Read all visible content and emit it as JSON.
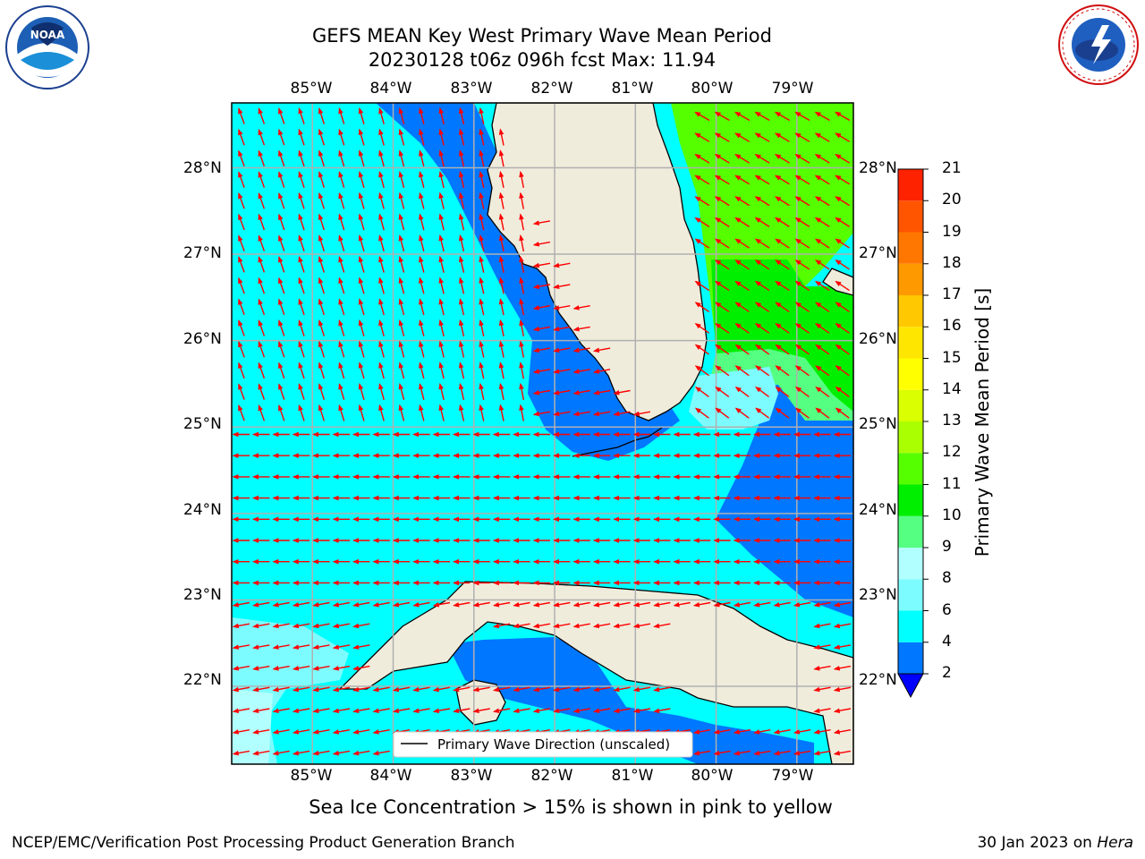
{
  "title": {
    "line1": "GEFS MEAN Key West Primary Wave Mean Period",
    "line2": "20230128 t06z 096h fcst   Max: 11.94"
  },
  "map": {
    "lon_labels": [
      "85°W",
      "84°W",
      "83°W",
      "82°W",
      "81°W",
      "80°W",
      "79°W"
    ],
    "lat_labels": [
      "28°N",
      "27°N",
      "26°N",
      "25°N",
      "24°N",
      "23°N",
      "22°N"
    ],
    "extent": {
      "lon_min": -86.0,
      "lon_max": -78.3,
      "lat_min": 21.1,
      "lat_max": 28.75
    },
    "legend_label": "Primary Wave Direction (unscaled)",
    "arrow_color": "#ff0000",
    "land_color": "#efecdc",
    "grid_color": "#b0b0b0"
  },
  "colorbar": {
    "title": "Primary Wave Mean Period [s]",
    "ticks": [
      "2",
      "4",
      "6",
      "8",
      "9",
      "10",
      "11",
      "12",
      "13",
      "14",
      "15",
      "16",
      "17",
      "18",
      "19",
      "20",
      "21"
    ],
    "bins": [
      {
        "from": 2,
        "to": 4,
        "color": "#0077ff"
      },
      {
        "from": 4,
        "to": 6,
        "color": "#00ffff"
      },
      {
        "from": 6,
        "to": 8,
        "color": "#7dfcff"
      },
      {
        "from": 8,
        "to": 9,
        "color": "#b2ffff"
      },
      {
        "from": 9,
        "to": 10,
        "color": "#55ff82"
      },
      {
        "from": 10,
        "to": 11,
        "color": "#00ef00"
      },
      {
        "from": 11,
        "to": 12,
        "color": "#55ff00"
      },
      {
        "from": 12,
        "to": 13,
        "color": "#aaff00"
      },
      {
        "from": 13,
        "to": 14,
        "color": "#d9ff00"
      },
      {
        "from": 14,
        "to": 15,
        "color": "#ffff00"
      },
      {
        "from": 15,
        "to": 16,
        "color": "#ffe600"
      },
      {
        "from": 16,
        "to": 17,
        "color": "#ffc800"
      },
      {
        "from": 17,
        "to": 18,
        "color": "#ff9900"
      },
      {
        "from": 18,
        "to": 19,
        "color": "#ff7700"
      },
      {
        "from": 19,
        "to": 20,
        "color": "#ff5500"
      },
      {
        "from": 20,
        "to": 21,
        "color": "#ff2200"
      }
    ],
    "under_color": "#0000ff"
  },
  "note": "Sea Ice Concentration > 15% is shown in pink to yellow",
  "footer": {
    "left": "NCEP/EMC/Verification Post Processing Product Generation Branch",
    "right_prefix": "30 Jan 2023 on ",
    "right_machine": "Hera"
  },
  "logos": {
    "noaa_text": "NOAA",
    "nws_text": "NATIONAL WEATHER SERVICE"
  }
}
